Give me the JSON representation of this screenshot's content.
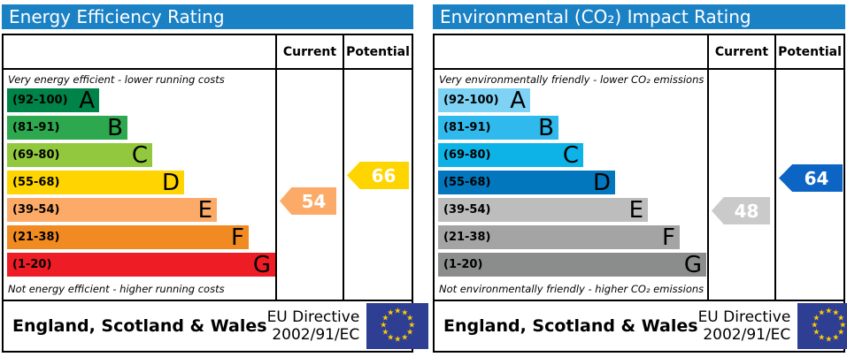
{
  "accent": {
    "header_bg": "#1b81c5",
    "header_text": "#ffffff",
    "border": "#000000",
    "eu_flag_bg": "#2e3e92",
    "eu_star": "#ffcc00"
  },
  "panels": [
    {
      "title": "Energy Efficiency Rating",
      "columns": {
        "current": "Current",
        "potential": "Potential"
      },
      "top_caption": "Very energy efficient - lower running costs",
      "bottom_caption": "Not energy efficient - higher running costs",
      "bands": [
        {
          "range": "(92-100)",
          "letter": "A",
          "color": "#008348"
        },
        {
          "range": "(81-91)",
          "letter": "B",
          "color": "#2da84e"
        },
        {
          "range": "(69-80)",
          "letter": "C",
          "color": "#92c83e"
        },
        {
          "range": "(55-68)",
          "letter": "D",
          "color": "#ffd400"
        },
        {
          "range": "(39-54)",
          "letter": "E",
          "color": "#fcaa67"
        },
        {
          "range": "(21-38)",
          "letter": "F",
          "color": "#f18a21"
        },
        {
          "range": "(1-20)",
          "letter": "G",
          "color": "#ee1c25"
        }
      ],
      "current": {
        "value": "54",
        "color": "#fcaa67"
      },
      "potential": {
        "value": "66",
        "color": "#ffd500"
      },
      "footer": {
        "region": "England, Scotland & Wales",
        "directive": "EU Directive",
        "directive_ref": "2002/91/EC"
      }
    },
    {
      "title": "Environmental (CO₂) Impact Rating",
      "columns": {
        "current": "Current",
        "potential": "Potential"
      },
      "top_caption": "Very environmentally friendly - lower CO₂ emissions",
      "bottom_caption": "Not environmentally friendly - higher CO₂ emissions",
      "bands": [
        {
          "range": "(92-100)",
          "letter": "A",
          "color": "#7ed3f5"
        },
        {
          "range": "(81-91)",
          "letter": "B",
          "color": "#2fb9ec"
        },
        {
          "range": "(69-80)",
          "letter": "C",
          "color": "#0db3e7"
        },
        {
          "range": "(55-68)",
          "letter": "D",
          "color": "#0277bd"
        },
        {
          "range": "(39-54)",
          "letter": "E",
          "color": "#bcbdbc"
        },
        {
          "range": "(21-38)",
          "letter": "F",
          "color": "#a3a4a3"
        },
        {
          "range": "(1-20)",
          "letter": "G",
          "color": "#8b8d8c"
        }
      ],
      "current": {
        "value": "48",
        "color": "#c9cac9"
      },
      "potential": {
        "value": "64",
        "color": "#0c64c4"
      },
      "footer": {
        "region": "England, Scotland & Wales",
        "directive": "EU Directive",
        "directive_ref": "2002/91/EC"
      }
    }
  ],
  "chart_data": [
    {
      "type": "bar",
      "title": "Energy Efficiency Rating",
      "categories": [
        "A (92-100)",
        "B (81-91)",
        "C (69-80)",
        "D (55-68)",
        "E (39-54)",
        "F (21-38)",
        "G (1-20)"
      ],
      "bands": [
        {
          "letter": "A",
          "range": [
            92,
            100
          ]
        },
        {
          "letter": "B",
          "range": [
            81,
            91
          ]
        },
        {
          "letter": "C",
          "range": [
            69,
            80
          ]
        },
        {
          "letter": "D",
          "range": [
            55,
            68
          ]
        },
        {
          "letter": "E",
          "range": [
            39,
            54
          ]
        },
        {
          "letter": "F",
          "range": [
            21,
            38
          ]
        },
        {
          "letter": "G",
          "range": [
            1,
            20
          ]
        }
      ],
      "series": [
        {
          "name": "Current",
          "values": [
            54
          ],
          "band": "E"
        },
        {
          "name": "Potential",
          "values": [
            66
          ],
          "band": "D"
        }
      ],
      "xlim": [
        1,
        100
      ],
      "annotations": [
        "Very energy efficient - lower running costs",
        "Not energy efficient - higher running costs"
      ],
      "footnote": "England, Scotland & Wales — EU Directive 2002/91/EC"
    },
    {
      "type": "bar",
      "title": "Environmental (CO₂) Impact Rating",
      "categories": [
        "A (92-100)",
        "B (81-91)",
        "C (69-80)",
        "D (55-68)",
        "E (39-54)",
        "F (21-38)",
        "G (1-20)"
      ],
      "bands": [
        {
          "letter": "A",
          "range": [
            92,
            100
          ]
        },
        {
          "letter": "B",
          "range": [
            81,
            91
          ]
        },
        {
          "letter": "C",
          "range": [
            69,
            80
          ]
        },
        {
          "letter": "D",
          "range": [
            55,
            68
          ]
        },
        {
          "letter": "E",
          "range": [
            39,
            54
          ]
        },
        {
          "letter": "F",
          "range": [
            21,
            38
          ]
        },
        {
          "letter": "G",
          "range": [
            1,
            20
          ]
        }
      ],
      "series": [
        {
          "name": "Current",
          "values": [
            48
          ],
          "band": "E"
        },
        {
          "name": "Potential",
          "values": [
            64
          ],
          "band": "D"
        }
      ],
      "xlim": [
        1,
        100
      ],
      "annotations": [
        "Very environmentally friendly - lower CO₂ emissions",
        "Not environmentally friendly - higher CO₂ emissions"
      ],
      "footnote": "England, Scotland & Wales — EU Directive 2002/91/EC"
    }
  ]
}
